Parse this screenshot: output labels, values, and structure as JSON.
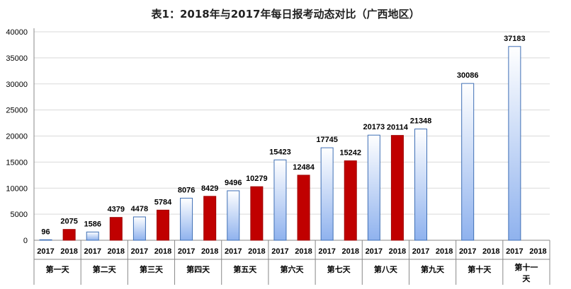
{
  "chart_data": {
    "type": "bar",
    "title": "表1：2018年与2017年每日报考动态对比（广西地区）",
    "ylim": [
      0,
      40000
    ],
    "yticks": [
      0,
      5000,
      10000,
      15000,
      20000,
      25000,
      30000,
      35000,
      40000
    ],
    "groups": [
      "第一天",
      "第二天",
      "第三天",
      "第四天",
      "第五天",
      "第六天",
      "第七天",
      "第八天",
      "第九天",
      "第十天",
      "第十一天"
    ],
    "series": [
      {
        "name": "2017",
        "color": "#bfd3f0",
        "values": [
          96,
          1586,
          4478,
          8076,
          9496,
          15423,
          17745,
          20173,
          21348,
          30086,
          37183
        ]
      },
      {
        "name": "2018",
        "color": "#c00000",
        "values": [
          2075,
          4379,
          5784,
          8429,
          10279,
          12484,
          15242,
          20114,
          null,
          null,
          null
        ]
      }
    ]
  }
}
